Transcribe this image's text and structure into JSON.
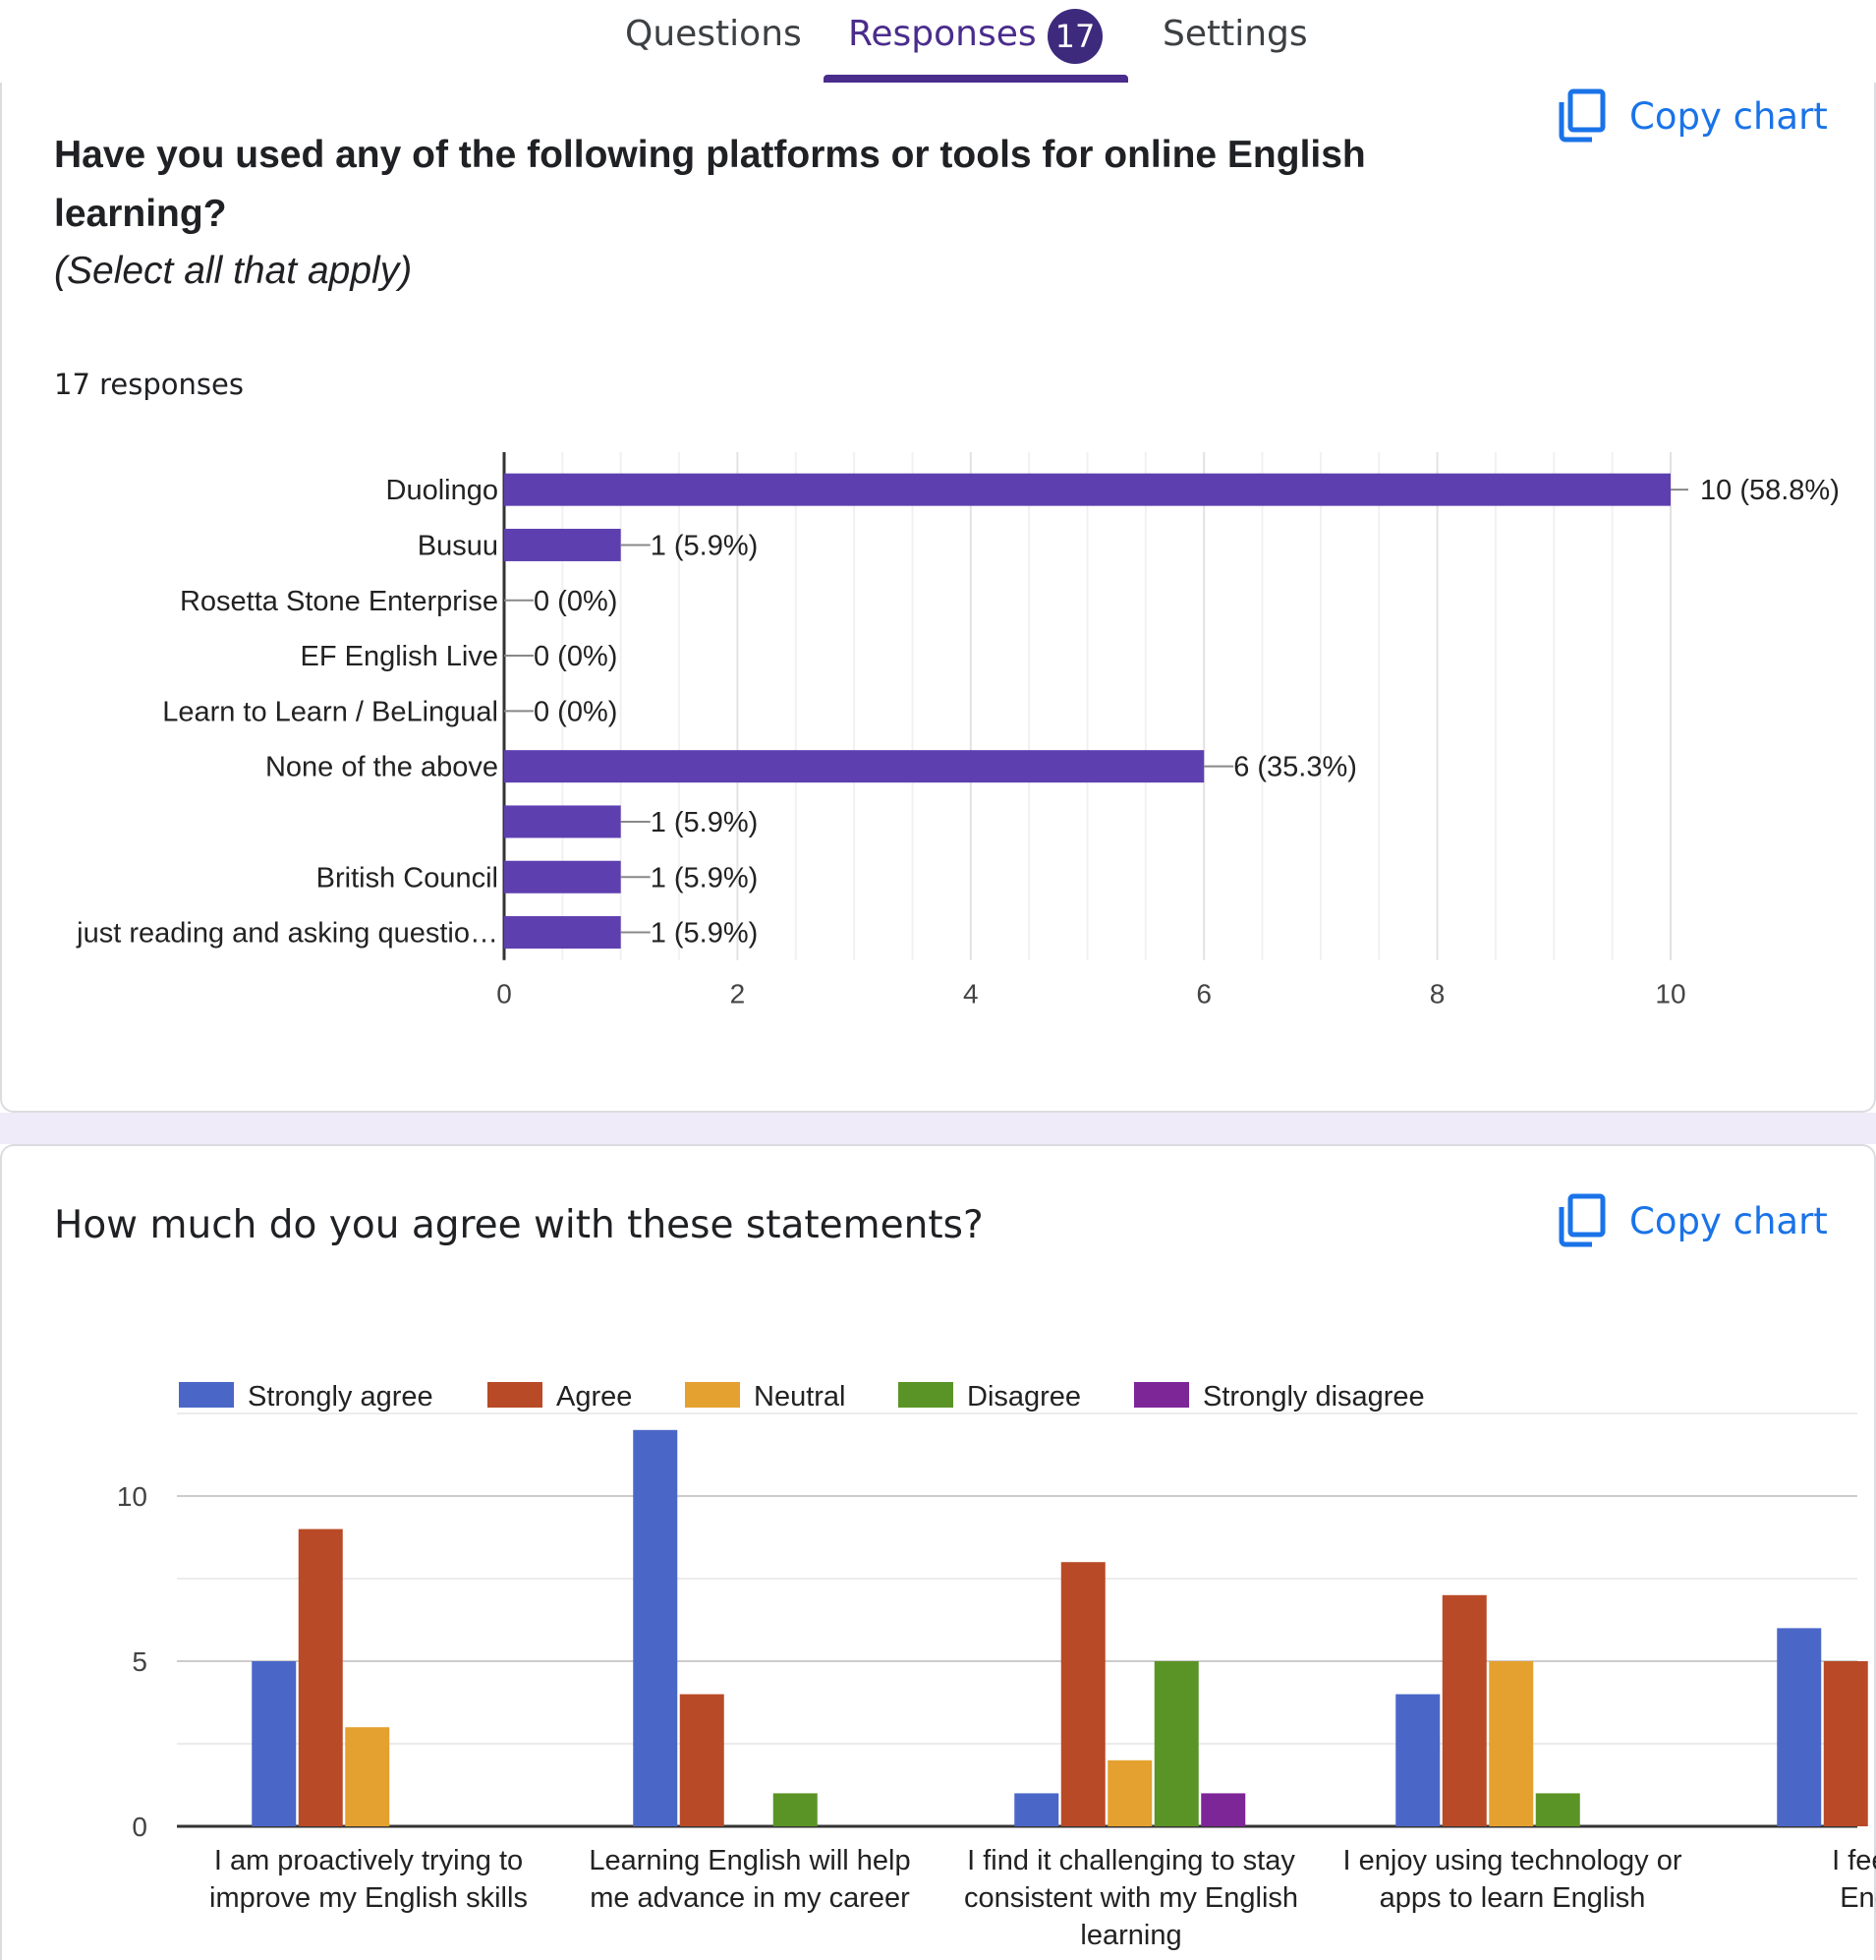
{
  "tabs": {
    "questions": "Questions",
    "responses": "Responses",
    "response_count": "17",
    "settings": "Settings"
  },
  "copy_chart_label": "Copy chart",
  "question1": {
    "title": "Have you used any of the following platforms or tools for online English learning?",
    "subtitle": "(Select all that apply)",
    "responses": "17 responses"
  },
  "question2": {
    "title": "How much do you agree with these statements?"
  },
  "colors": {
    "bar_purple": "#5e3fb0",
    "strongly_agree": "#4a67c8",
    "agree": "#b94a27",
    "neutral": "#e4a12f",
    "disagree": "#5a9426",
    "strongly_disagree": "#7d2698",
    "accent": "#1a73e8"
  },
  "chart_data": [
    {
      "type": "bar",
      "orientation": "horizontal",
      "categories": [
        "Duolingo",
        "Busuu",
        "Rosetta Stone Enterprise",
        "EF English Live",
        "Learn to Learn / BeLingual",
        "None of the above",
        "",
        "British Council",
        "just reading and asking questio…"
      ],
      "values": [
        10,
        1,
        0,
        0,
        0,
        6,
        1,
        1,
        1
      ],
      "labels": [
        "10 (58.8%)",
        "1 (5.9%)",
        "0 (0%)",
        "0 (0%)",
        "0 (0%)",
        "6 (35.3%)",
        "1 (5.9%)",
        "1 (5.9%)",
        "1 (5.9%)"
      ],
      "xlim": [
        0,
        10
      ],
      "xticks": [
        "0",
        "2",
        "4",
        "6",
        "8",
        "10"
      ]
    },
    {
      "type": "bar",
      "orientation": "vertical",
      "categories": [
        "I am proactively trying to improve my English skills",
        "Learning English will help me advance in my career",
        "I find it challenging to stay consistent with my English learning",
        "I enjoy using technology or apps to learn English",
        "I feel conf… English i… s…"
      ],
      "category_lines": [
        [
          "I am proactively trying to",
          "improve my English skills"
        ],
        [
          "Learning English will help",
          "me advance in my career"
        ],
        [
          "I find it challenging to stay",
          "consistent with my English",
          "learning"
        ],
        [
          "I enjoy using technology or",
          "apps to learn English"
        ],
        [
          "I feel conf",
          "English i",
          "s"
        ]
      ],
      "series": [
        {
          "name": "Strongly agree",
          "values": [
            5,
            12,
            1,
            4,
            6
          ]
        },
        {
          "name": "Agree",
          "values": [
            9,
            4,
            8,
            7,
            5
          ]
        },
        {
          "name": "Neutral",
          "values": [
            3,
            0,
            2,
            5,
            null
          ]
        },
        {
          "name": "Disagree",
          "values": [
            0,
            1,
            5,
            1,
            null
          ]
        },
        {
          "name": "Strongly disagree",
          "values": [
            0,
            0,
            1,
            0,
            null
          ]
        }
      ],
      "ylim": [
        0,
        12.5
      ],
      "yticks": [
        "0",
        "5",
        "10"
      ]
    }
  ]
}
